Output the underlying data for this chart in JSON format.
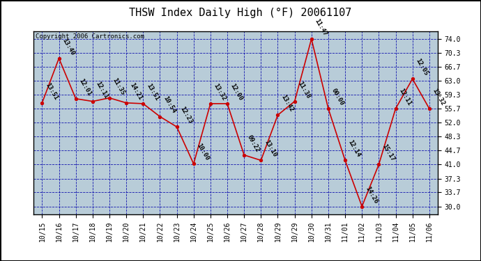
{
  "title": "THSW Index Daily High (°F) 20061107",
  "copyright": "Copyright 2006 Cartronics.com",
  "background_color": "#b8ccd8",
  "plot_bg_color": "#b8ccd8",
  "line_color": "#cc0000",
  "marker_color": "#cc0000",
  "grid_color": "#0000aa",
  "x_tick_labels": [
    "10/15",
    "10/16",
    "10/17",
    "10/18",
    "10/19",
    "10/20",
    "10/21",
    "10/22",
    "10/23",
    "10/24",
    "10/25",
    "10/26",
    "10/27",
    "10/28",
    "10/29",
    "10/29",
    "10/30",
    "10/31",
    "11/01",
    "11/02",
    "11/03",
    "11/04",
    "11/05",
    "11/06"
  ],
  "values": [
    57.2,
    68.9,
    58.3,
    57.6,
    58.5,
    57.2,
    57.0,
    53.6,
    50.9,
    41.2,
    57.0,
    57.0,
    43.5,
    42.1,
    54.0,
    57.6,
    74.0,
    55.7,
    42.1,
    30.0,
    41.0,
    55.7,
    63.5,
    55.7
  ],
  "time_labels": [
    "13:51",
    "13:40",
    "12:01",
    "12:11",
    "11:35",
    "14:21",
    "13:51",
    "10:54",
    "12:23",
    "10:00",
    "13:32",
    "12:00",
    "09:22",
    "13:10",
    "13:42",
    "11:38",
    "11:47",
    "00:00",
    "12:14",
    "14:26",
    "15:17",
    "12:11",
    "12:05",
    "13:32"
  ],
  "ylim": [
    28.0,
    76.0
  ],
  "yticks": [
    30.0,
    33.7,
    37.3,
    41.0,
    44.7,
    48.3,
    52.0,
    55.7,
    59.3,
    63.0,
    66.7,
    70.3,
    74.0
  ],
  "outer_bg": "#ffffff",
  "border_color": "#000000",
  "title_fontsize": 11,
  "annotation_fontsize": 6.5,
  "copyright_fontsize": 6.5,
  "tick_label_fontsize": 7
}
